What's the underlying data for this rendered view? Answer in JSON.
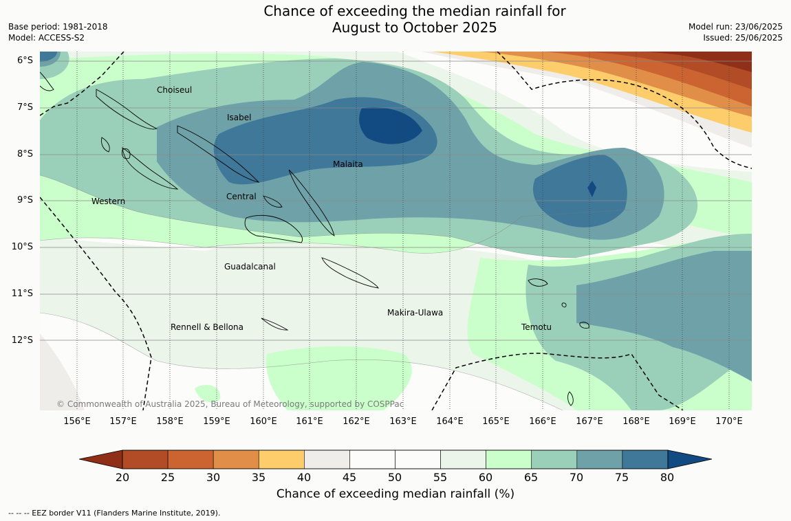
{
  "title_line1": "Chance of exceeding the median rainfall for",
  "title_line2": "August to October 2025",
  "meta": {
    "base_period": "Base period: 1981-2018",
    "model": "Model: ACCESS-S2",
    "model_run": "Model run: 23/06/2025",
    "issued": "Issued: 25/06/2025"
  },
  "map": {
    "lat_labels": [
      "6°S",
      "7°S",
      "8°S",
      "9°S",
      "10°S",
      "11°S",
      "12°S"
    ],
    "lon_labels": [
      "156°E",
      "157°E",
      "158°E",
      "159°E",
      "160°E",
      "161°E",
      "162°E",
      "163°E",
      "164°E",
      "165°E",
      "166°E",
      "167°E",
      "168°E",
      "169°E",
      "170°E"
    ],
    "provinces": [
      "Choiseul",
      "Isabel",
      "Malaita",
      "Western",
      "Central",
      "Guadalcanal",
      "Makira-Ulawa",
      "Rennell & Bellona",
      "Temotu"
    ],
    "copyright": "© Commonwealth of Australia 2025, Bureau of Meteorology, supported by COSPPac"
  },
  "colorbar": {
    "ticks": [
      "20",
      "25",
      "30",
      "35",
      "40",
      "45",
      "50",
      "55",
      "60",
      "65",
      "70",
      "75",
      "80"
    ],
    "colors": [
      "#8f2f18",
      "#b24c27",
      "#cc6432",
      "#e08e48",
      "#fdcd6c",
      "#efedea",
      "#fcfcfa",
      "#fcfcfa",
      "#ecf5ea",
      "#cafeca",
      "#9ad0b9",
      "#6fa2a8",
      "#3f7899",
      "#124a82"
    ],
    "label": "Chance of exceeding median rainfall (%)"
  },
  "footnote": "--  --  -- EEZ border V11 (Flanders Marine Institute, 2019)."
}
